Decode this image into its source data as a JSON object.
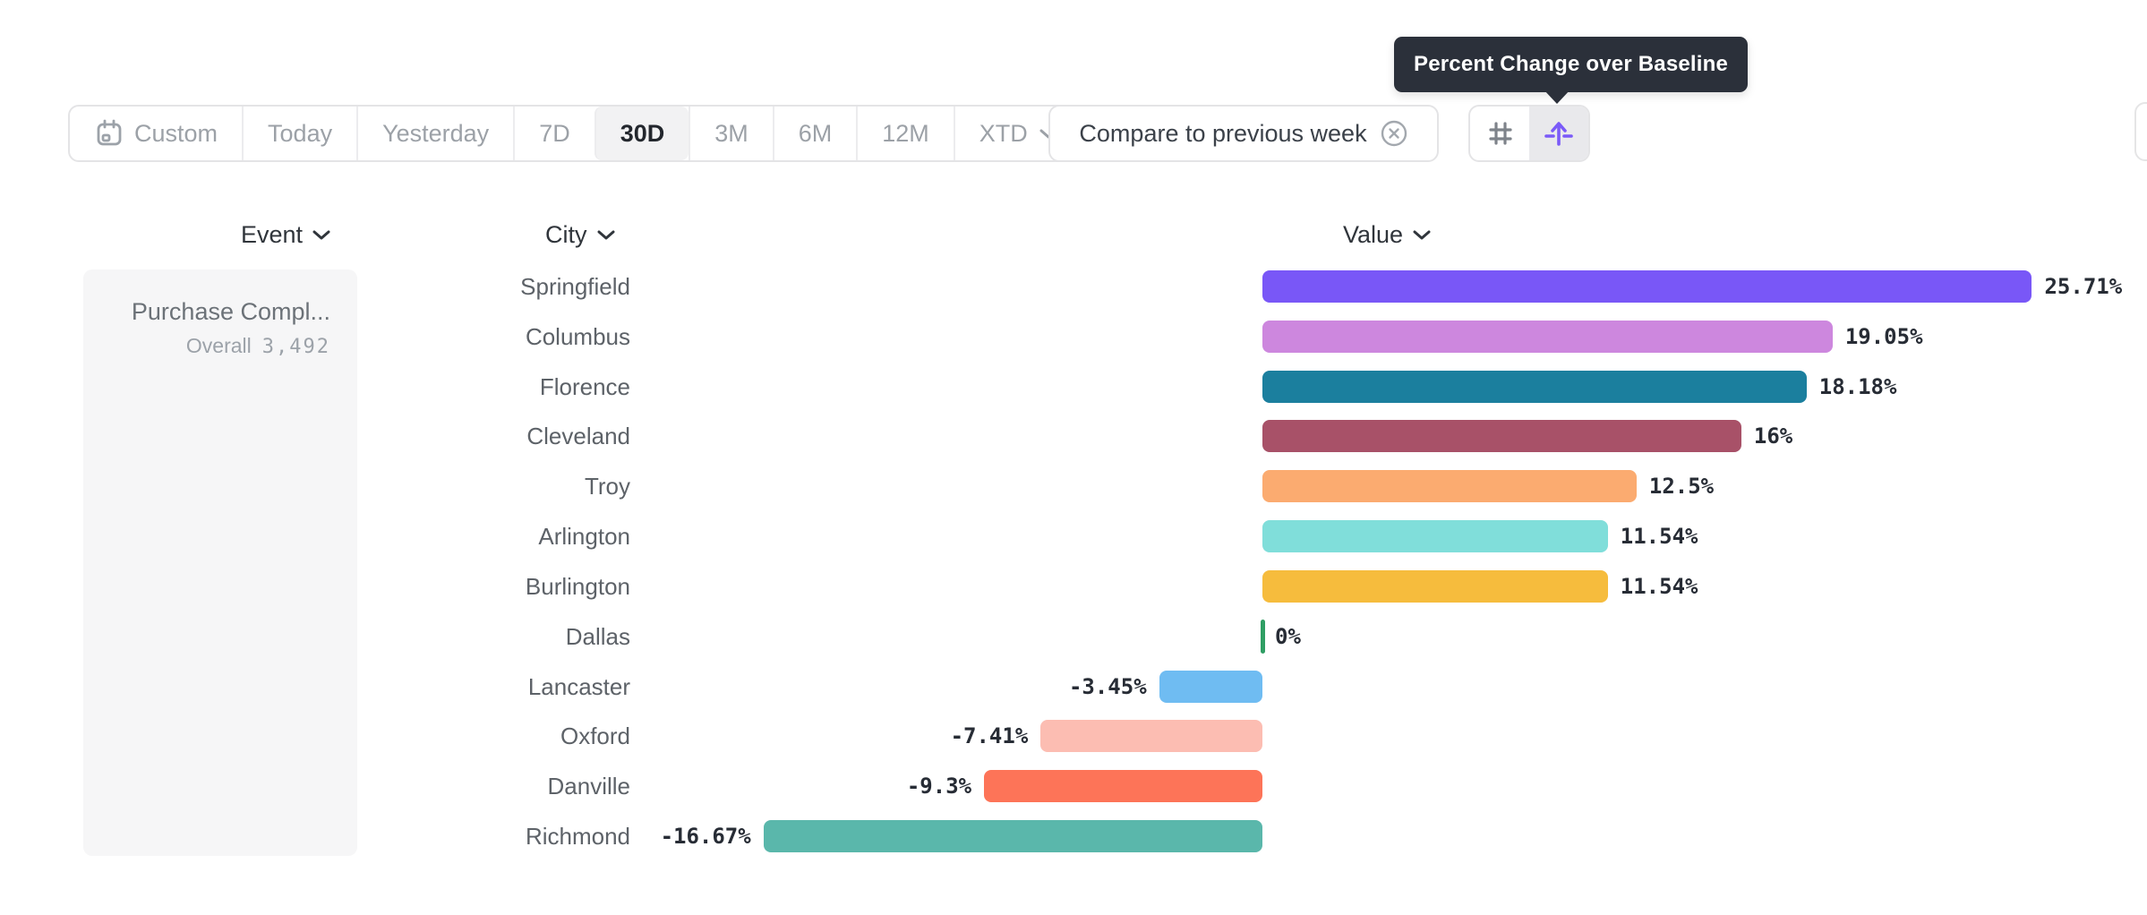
{
  "tooltip": {
    "text": "Percent Change over Baseline"
  },
  "toolbar": {
    "date_ranges": [
      {
        "label": "Custom",
        "icon": "calendar"
      },
      {
        "label": "Today"
      },
      {
        "label": "Yesterday"
      },
      {
        "label": "7D"
      },
      {
        "label": "30D"
      },
      {
        "label": "3M"
      },
      {
        "label": "6M"
      },
      {
        "label": "12M"
      },
      {
        "label": "XTD",
        "chevron": true
      }
    ],
    "selected_range": "30D",
    "compare_label": "Compare to previous week",
    "view_toggles": [
      {
        "name": "grid-view",
        "active": false
      },
      {
        "name": "percent-change-over-baseline",
        "active": true
      }
    ]
  },
  "columns": {
    "event": "Event",
    "city": "City",
    "value": "Value"
  },
  "event_panel": {
    "title": "Purchase Compl...",
    "overall_label": "Overall",
    "overall_value": "3,492"
  },
  "chart_data": {
    "type": "bar",
    "orientation": "horizontal",
    "title": "Percent Change over Baseline",
    "unit": "%",
    "baseline": 0,
    "xlim": [
      -16.67,
      25.71
    ],
    "categories": [
      "Springfield",
      "Columbus",
      "Florence",
      "Cleveland",
      "Troy",
      "Arlington",
      "Burlington",
      "Dallas",
      "Lancaster",
      "Oxford",
      "Danville",
      "Richmond"
    ],
    "values": [
      25.71,
      19.05,
      18.18,
      16,
      12.5,
      11.54,
      11.54,
      0,
      -3.45,
      -7.41,
      -9.3,
      -16.67
    ],
    "value_labels": [
      "25.71%",
      "19.05%",
      "18.18%",
      "16%",
      "12.5%",
      "11.54%",
      "11.54%",
      "0%",
      "-3.45%",
      "-7.41%",
      "-9.3%",
      "-16.67%"
    ],
    "colors": [
      "#7957F7",
      "#CD87DE",
      "#1B7F9E",
      "#A85168",
      "#FBAB70",
      "#80DEDA",
      "#F6BC3D",
      "#2F9E64",
      "#6FBCF2",
      "#FCBDB2",
      "#FD7458",
      "#5AB7AB"
    ],
    "legend": false,
    "grid": false
  },
  "colors": {
    "accent_purple": "#7A5AF8",
    "tooltip_bg": "#2B303A",
    "baseline_green": "#2F9E64"
  }
}
